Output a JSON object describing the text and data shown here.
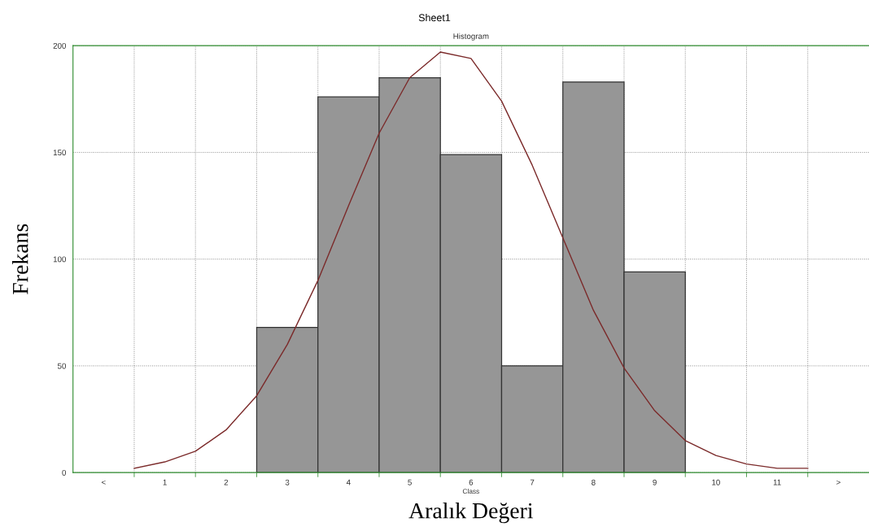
{
  "chart_data": {
    "type": "bar",
    "title": "Sheet1",
    "subtitle": "Histogram",
    "xlabel": "Aralık Değeri",
    "ylabel": "Frekans",
    "xlim": [
      -0.5,
      12.5
    ],
    "xticks": [
      {
        "value": 0,
        "label": "<"
      },
      1,
      2,
      3,
      4,
      5,
      6,
      7,
      8,
      9,
      10,
      11,
      {
        "value": 12,
        "label": ">"
      }
    ],
    "series": [
      {
        "color": "#969696",
        "x": [
          3,
          4,
          5,
          6,
          7,
          8,
          9
        ],
        "values": [
          68,
          176,
          185,
          149,
          50,
          183,
          94
        ]
      },
      {
        "type": "line",
        "color": "#7b2a2a",
        "x": [
          0.5,
          1.0,
          1.5,
          2.0,
          2.5,
          3.0,
          3.5,
          4.0,
          4.5,
          5.0,
          5.5,
          6.0,
          6.5,
          7.0,
          7.5,
          8.0,
          8.5,
          9.0,
          9.5,
          10.0,
          10.5,
          11.0,
          11.5
        ],
        "values": [
          2,
          5,
          10,
          20,
          36,
          60,
          90,
          125,
          159,
          185,
          197,
          194,
          174,
          144,
          110,
          76,
          49,
          29,
          15,
          8,
          4,
          2,
          2
        ]
      }
    ],
    "ylim": [
      0,
      200
    ],
    "yticks": [
      0,
      50,
      100,
      150,
      200
    ],
    "grid": true,
    "annotations": [
      "Class"
    ]
  }
}
